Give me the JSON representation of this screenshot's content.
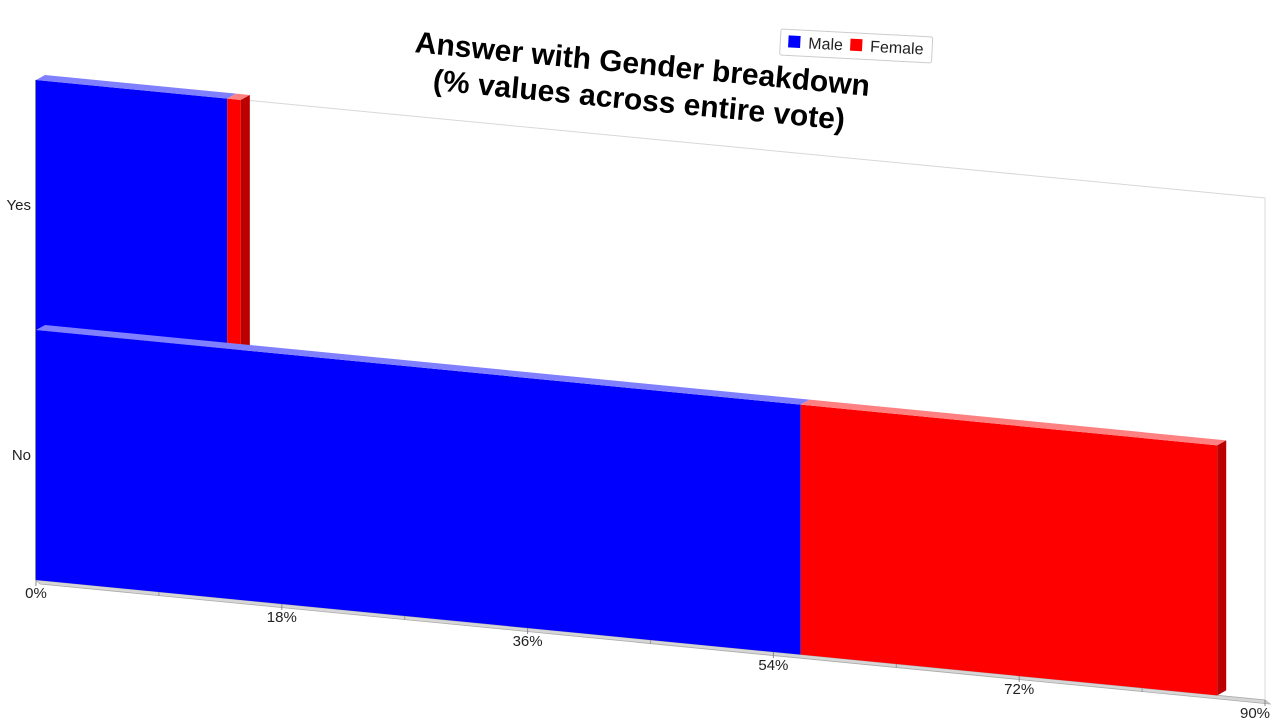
{
  "chart_data": {
    "type": "bar",
    "orientation": "horizontal",
    "stacked": true,
    "three_d": true,
    "title": [
      "Answer with Gender breakdown",
      "(% values across entire vote)"
    ],
    "categories": [
      "Yes",
      "No"
    ],
    "series": [
      {
        "name": "Male",
        "values": [
          14,
          56
        ],
        "color": "#0000ff",
        "side_color": "#0000aa",
        "top_color": "#8080ff"
      },
      {
        "name": "Female",
        "values": [
          1,
          30.5
        ],
        "color": "#ff0000",
        "side_color": "#bb0000",
        "top_color": "#ff8080"
      }
    ],
    "x_ticks": [
      "0%",
      "18%",
      "36%",
      "54%",
      "72%",
      "90%"
    ],
    "xlim": [
      0,
      90
    ],
    "legend_placement": "top-right",
    "grid": false
  }
}
